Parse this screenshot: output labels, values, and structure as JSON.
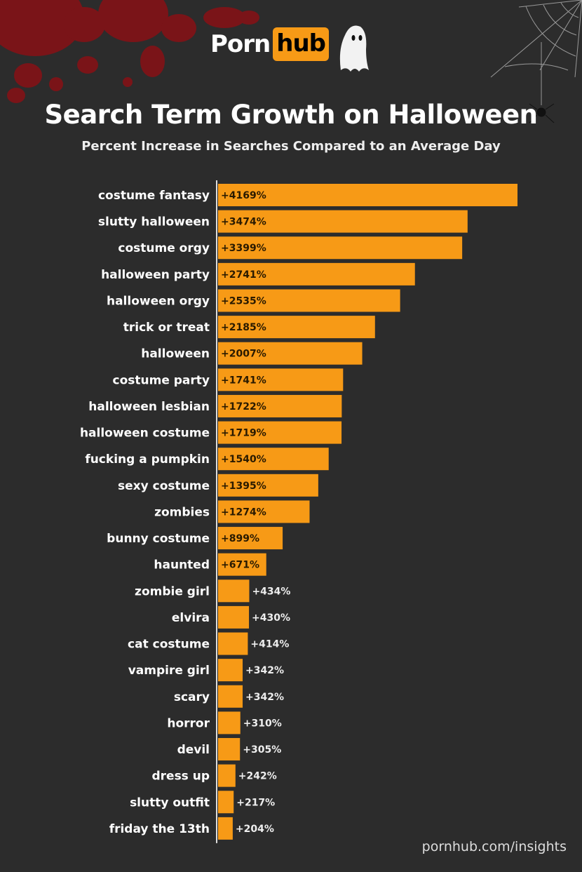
{
  "logo": {
    "part1": "Porn",
    "part2": "hub"
  },
  "colors": {
    "background": "#2c2c2c",
    "bar": "#f79a16",
    "blood": "#7a1418"
  },
  "footer": "pornhub.com/insights",
  "chart_data": {
    "type": "bar",
    "orientation": "horizontal",
    "title": "Search Term Growth on Halloween",
    "subtitle": "Percent Increase in Searches Compared to an Average Day",
    "categories": [
      "costume fantasy",
      "slutty halloween",
      "costume orgy",
      "halloween party",
      "halloween orgy",
      "trick or treat",
      "halloween",
      "costume party",
      "halloween lesbian",
      "halloween costume",
      "fucking a pumpkin",
      "sexy costume",
      "zombies",
      "bunny costume",
      "haunted",
      "zombie girl",
      "elvira",
      "cat costume",
      "vampire girl",
      "scary",
      "horror",
      "devil",
      "dress up",
      "slutty outfit",
      "friday the 13th"
    ],
    "values": [
      4169,
      3474,
      3399,
      2741,
      2535,
      2185,
      2007,
      1741,
      1722,
      1719,
      1540,
      1395,
      1274,
      899,
      671,
      434,
      430,
      414,
      342,
      342,
      310,
      305,
      242,
      217,
      204
    ],
    "data_labels": [
      "+4169%",
      "+3474%",
      "+3399%",
      "+2741%",
      "+2535%",
      "+2185%",
      "+2007%",
      "+1741%",
      "+1722%",
      "+1719%",
      "+1540%",
      "+1395%",
      "+1274%",
      "+899%",
      "+671%",
      "+434%",
      "+430%",
      "+414%",
      "+342%",
      "+342%",
      "+310%",
      "+305%",
      "+242%",
      "+217%",
      "+204%"
    ],
    "grid": false,
    "legend": "none"
  }
}
